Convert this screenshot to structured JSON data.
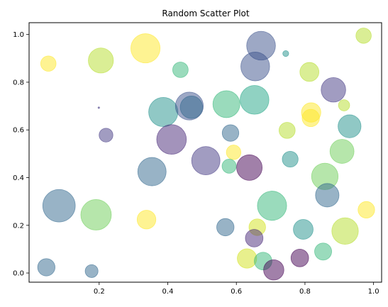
{
  "chart_data": {
    "type": "scatter",
    "title": "Random Scatter Plot",
    "xlabel": "",
    "ylabel": "",
    "xlim": [
      -0.0043,
      1.0235
    ],
    "ylim": [
      -0.0385,
      1.0495
    ],
    "x_ticks": [
      "0.2",
      "0.4",
      "0.6",
      "0.8",
      "1.0"
    ],
    "x_tick_values": [
      0.2,
      0.4,
      0.6,
      0.8,
      1.0
    ],
    "y_ticks": [
      "0.0",
      "0.2",
      "0.4",
      "0.6",
      "0.8",
      "1.0"
    ],
    "y_tick_values": [
      0.0,
      0.2,
      0.4,
      0.6,
      0.8,
      1.0
    ],
    "grid": false,
    "legend": "none",
    "colormap": "viridis",
    "alpha": 0.5,
    "points": [
      {
        "x": 0.052,
        "y": 0.878,
        "size": 470,
        "color": "#fde725"
      },
      {
        "x": 0.205,
        "y": 0.891,
        "size": 1250,
        "color": "#b5de2b"
      },
      {
        "x": 0.335,
        "y": 0.942,
        "size": 1700,
        "color": "#fde725"
      },
      {
        "x": 0.437,
        "y": 0.852,
        "size": 480,
        "color": "#35b779"
      },
      {
        "x": 0.672,
        "y": 0.953,
        "size": 1650,
        "color": "#3b528b"
      },
      {
        "x": 0.744,
        "y": 0.92,
        "size": 70,
        "color": "#21918c"
      },
      {
        "x": 0.971,
        "y": 0.995,
        "size": 470,
        "color": "#b5de2b"
      },
      {
        "x": 0.655,
        "y": 0.866,
        "size": 1650,
        "color": "#3b528b"
      },
      {
        "x": 0.813,
        "y": 0.843,
        "size": 720,
        "color": "#b5de2b"
      },
      {
        "x": 0.883,
        "y": 0.768,
        "size": 1200,
        "color": "#443983"
      },
      {
        "x": 0.199,
        "y": 0.693,
        "size": 5,
        "color": "#443983"
      },
      {
        "x": 0.387,
        "y": 0.675,
        "size": 1700,
        "color": "#21918c"
      },
      {
        "x": 0.463,
        "y": 0.7,
        "size": 1550,
        "color": "#3b528b"
      },
      {
        "x": 0.469,
        "y": 0.695,
        "size": 1000,
        "color": "#31688e"
      },
      {
        "x": 0.571,
        "y": 0.708,
        "size": 1450,
        "color": "#35b779"
      },
      {
        "x": 0.653,
        "y": 0.726,
        "size": 1650,
        "color": "#21a685"
      },
      {
        "x": 0.818,
        "y": 0.673,
        "size": 750,
        "color": "#fde725"
      },
      {
        "x": 0.914,
        "y": 0.703,
        "size": 250,
        "color": "#b5de2b"
      },
      {
        "x": 0.817,
        "y": 0.65,
        "size": 600,
        "color": "#fde725"
      },
      {
        "x": 0.93,
        "y": 0.615,
        "size": 1050,
        "color": "#21918c"
      },
      {
        "x": 0.22,
        "y": 0.578,
        "size": 380,
        "color": "#443983"
      },
      {
        "x": 0.411,
        "y": 0.56,
        "size": 1750,
        "color": "#482878"
      },
      {
        "x": 0.583,
        "y": 0.587,
        "size": 550,
        "color": "#31688e"
      },
      {
        "x": 0.748,
        "y": 0.598,
        "size": 520,
        "color": "#b5de2b"
      },
      {
        "x": 0.511,
        "y": 0.471,
        "size": 1600,
        "color": "#443983"
      },
      {
        "x": 0.592,
        "y": 0.506,
        "size": 420,
        "color": "#fde725"
      },
      {
        "x": 0.579,
        "y": 0.448,
        "size": 400,
        "color": "#35b779"
      },
      {
        "x": 0.638,
        "y": 0.442,
        "size": 1300,
        "color": "#440154"
      },
      {
        "x": 0.757,
        "y": 0.477,
        "size": 500,
        "color": "#21918c"
      },
      {
        "x": 0.908,
        "y": 0.51,
        "size": 1150,
        "color": "#6ece58"
      },
      {
        "x": 0.858,
        "y": 0.405,
        "size": 1400,
        "color": "#6ece58"
      },
      {
        "x": 0.354,
        "y": 0.425,
        "size": 1600,
        "color": "#31688e"
      },
      {
        "x": 0.865,
        "y": 0.326,
        "size": 1100,
        "color": "#31688e"
      },
      {
        "x": 0.083,
        "y": 0.282,
        "size": 2100,
        "color": "#31688e"
      },
      {
        "x": 0.191,
        "y": 0.244,
        "size": 1850,
        "color": "#6ece58"
      },
      {
        "x": 0.704,
        "y": 0.282,
        "size": 1700,
        "color": "#35b779"
      },
      {
        "x": 0.979,
        "y": 0.265,
        "size": 550,
        "color": "#fde725"
      },
      {
        "x": 0.338,
        "y": 0.224,
        "size": 700,
        "color": "#fde725"
      },
      {
        "x": 0.568,
        "y": 0.192,
        "size": 600,
        "color": "#31688e"
      },
      {
        "x": 0.661,
        "y": 0.192,
        "size": 550,
        "color": "#d2e21b"
      },
      {
        "x": 0.795,
        "y": 0.183,
        "size": 780,
        "color": "#21918c"
      },
      {
        "x": 0.917,
        "y": 0.176,
        "size": 1400,
        "color": "#b5de2b"
      },
      {
        "x": 0.652,
        "y": 0.146,
        "size": 620,
        "color": "#482878"
      },
      {
        "x": 0.853,
        "y": 0.09,
        "size": 580,
        "color": "#35b779"
      },
      {
        "x": 0.785,
        "y": 0.063,
        "size": 620,
        "color": "#440154"
      },
      {
        "x": 0.631,
        "y": 0.061,
        "size": 750,
        "color": "#d2e21b"
      },
      {
        "x": 0.678,
        "y": 0.05,
        "size": 620,
        "color": "#35b779"
      },
      {
        "x": 0.046,
        "y": 0.024,
        "size": 600,
        "color": "#31688e"
      },
      {
        "x": 0.178,
        "y": 0.008,
        "size": 330,
        "color": "#31688e"
      },
      {
        "x": 0.709,
        "y": 0.013,
        "size": 820,
        "color": "#440154"
      }
    ]
  }
}
